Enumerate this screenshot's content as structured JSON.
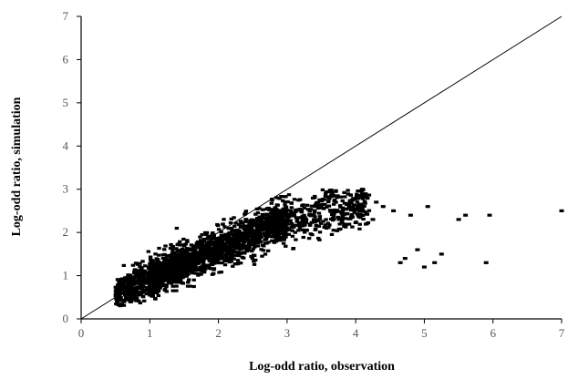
{
  "chart_data": {
    "type": "scatter",
    "title": "",
    "xlabel": "Log-odd ratio, observation",
    "ylabel": "Log-odd ratio, simulation",
    "xlim": [
      0,
      7
    ],
    "ylim": [
      0,
      7
    ],
    "xticks": [
      "0",
      "1",
      "2",
      "3",
      "4",
      "5",
      "6",
      "7"
    ],
    "yticks": [
      "0",
      "1",
      "2",
      "3",
      "4",
      "5",
      "6",
      "7"
    ],
    "grid": false,
    "legend": "none",
    "colors": {
      "points": "#000000",
      "axis": "#000000",
      "tick_text": "#555555",
      "reference_line": "#000000"
    },
    "reference_line": {
      "kind": "identity",
      "from": [
        0,
        0
      ],
      "to": [
        7,
        7
      ]
    },
    "point_cloud": {
      "approx_count": 2500,
      "x_range": [
        0.45,
        4.2
      ],
      "trend": "y rises from ~0.6 at x=0.5 to ~2.3 at x=3, flattening toward ~2.6 at x=4",
      "spread_y": 0.32
    },
    "series": [
      {
        "x": [
          4.1,
          4.25,
          4.3,
          4.4,
          4.55,
          4.65,
          4.72,
          4.8,
          4.9,
          5.0,
          5.05,
          5.15,
          5.25,
          5.5,
          5.6,
          5.9,
          5.95,
          7.0
        ],
        "y": [
          3.0,
          2.3,
          2.7,
          2.6,
          2.5,
          1.3,
          1.4,
          2.4,
          1.6,
          1.2,
          2.6,
          1.3,
          1.5,
          2.3,
          2.4,
          1.3,
          2.4,
          2.5
        ]
      }
    ]
  }
}
